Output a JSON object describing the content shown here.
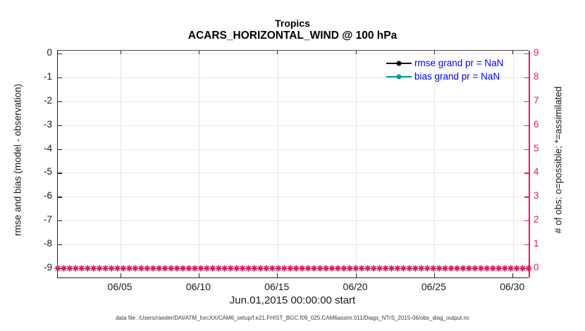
{
  "title": {
    "line1": "Tropics",
    "line2": "ACARS_HORIZONTAL_WIND @ 100 hPa"
  },
  "legend": {
    "text_color": "#0000ff",
    "items": [
      {
        "label": "rmse grand pr = NaN",
        "color": "#000000"
      },
      {
        "label": "bias grand pr = NaN",
        "color": "#009999"
      }
    ]
  },
  "axes": {
    "left": {
      "label": "rmse and bias (model - observation)",
      "ticks": [
        "0",
        "-1",
        "-2",
        "-3",
        "-4",
        "-5",
        "-6",
        "-7",
        "-8",
        "-9"
      ],
      "color": "#1a1a1a"
    },
    "right": {
      "label": "# of obs: o=possible; *=assimilated",
      "ticks": [
        "9",
        "8",
        "7",
        "6",
        "5",
        "4",
        "3",
        "2",
        "1",
        "0"
      ],
      "color": "#d81e5e"
    },
    "x": {
      "label": "Jun.01,2015 00:00:00 start",
      "ticks": [
        "06/05",
        "06/10",
        "06/15",
        "06/20",
        "06/25",
        "06/30"
      ],
      "positions": [
        0.13333,
        0.3,
        0.46667,
        0.63333,
        0.8,
        0.96667
      ]
    }
  },
  "footer": {
    "datafile": "data file: /Users/raeder/DAI/ATM_forcXX/CAM6_setup/f.e21.FHIST_BGC.f09_025.CAM6assim.011/Diags_NTrS_2015-06/obs_diag_output.nc"
  },
  "colors": {
    "accent_pink": "#d81e5e",
    "grid_gray": "#e4e4e4",
    "grid_pink": "#f7dce6",
    "axis_dark": "#262626",
    "legend_blue": "#0000ff",
    "bias_teal": "#009999"
  },
  "chart_data": {
    "type": "line",
    "title": "Tropics",
    "subtitle": "ACARS_HORIZONTAL_WIND @ 100 hPa",
    "xlabel": "Jun.01,2015 00:00:00 start",
    "x_range": [
      "2015-06-01 00:00:00",
      "2015-07-01 00:00:00"
    ],
    "x_tick_labels": [
      "06/05",
      "06/10",
      "06/15",
      "06/20",
      "06/25",
      "06/30"
    ],
    "left_y": {
      "label": "rmse and bias (model - observation)",
      "tick_values": [
        0,
        -1,
        -2,
        -3,
        -4,
        -5,
        -6,
        -7,
        -8,
        -9
      ],
      "range": [
        -9.35,
        0.1
      ]
    },
    "right_y": {
      "label": "# of obs: o=possible; *=assimilated",
      "tick_values": [
        9,
        8,
        7,
        6,
        5,
        4,
        3,
        2,
        1,
        0
      ],
      "range": [
        -0.4,
        9.05
      ]
    },
    "grid": true,
    "legend_position": "top-right inside, no box",
    "series": [
      {
        "name": "rmse grand pr = NaN",
        "axis": "left",
        "color": "#000000",
        "marker": "filled circle",
        "values": "NaN — no line plotted"
      },
      {
        "name": "bias grand pr = NaN",
        "axis": "left",
        "color": "#009999",
        "marker": "filled circle",
        "values": "NaN — no line plotted"
      },
      {
        "name": "# of obs possible (o)",
        "axis": "right",
        "color": "#d81e5e",
        "marker": "o",
        "n_points": 80,
        "constant_value": 0
      },
      {
        "name": "# of obs assimilated (*)",
        "axis": "right",
        "color": "#d81e5e",
        "marker": "*",
        "n_points": 80,
        "constant_value": 0
      }
    ]
  }
}
